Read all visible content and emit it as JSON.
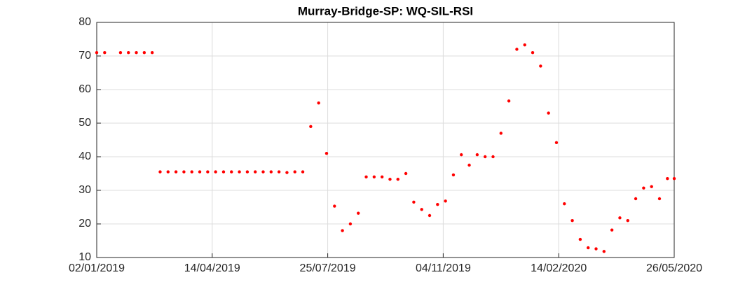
{
  "chart_data": {
    "type": "scatter",
    "title": "Murray-Bridge-SP: WQ-SIL-RSI",
    "x": [
      "02/01/2019",
      "09/01/2019",
      "23/01/2019",
      "30/01/2019",
      "06/02/2019",
      "13/02/2019",
      "20/02/2019",
      "27/02/2019",
      "06/03/2019",
      "13/03/2019",
      "20/03/2019",
      "27/03/2019",
      "03/04/2019",
      "10/04/2019",
      "17/04/2019",
      "24/04/2019",
      "01/05/2019",
      "08/05/2019",
      "15/05/2019",
      "22/05/2019",
      "29/05/2019",
      "05/06/2019",
      "12/06/2019",
      "19/06/2019",
      "26/06/2019",
      "03/07/2019",
      "10/07/2019",
      "17/07/2019",
      "24/07/2019",
      "31/07/2019",
      "07/08/2019",
      "14/08/2019",
      "21/08/2019",
      "28/08/2019",
      "04/09/2019",
      "11/09/2019",
      "18/09/2019",
      "25/09/2019",
      "02/10/2019",
      "09/10/2019",
      "16/10/2019",
      "23/10/2019",
      "30/10/2019",
      "06/11/2019",
      "13/11/2019",
      "20/11/2019",
      "27/11/2019",
      "04/12/2019",
      "11/12/2019",
      "18/12/2019",
      "25/12/2019",
      "01/01/2020",
      "08/01/2020",
      "15/01/2020",
      "22/01/2020",
      "29/01/2020",
      "05/02/2020",
      "12/02/2020",
      "19/02/2020",
      "26/02/2020",
      "04/03/2020",
      "11/03/2020",
      "18/03/2020",
      "25/03/2020",
      "01/04/2020",
      "08/04/2020",
      "15/04/2020",
      "22/04/2020",
      "29/04/2020",
      "06/05/2020",
      "13/05/2020",
      "20/05/2020",
      "26/05/2020"
    ],
    "values": [
      71,
      71,
      71,
      71,
      71,
      71,
      71,
      35.5,
      35.5,
      35.5,
      35.5,
      35.5,
      35.5,
      35.5,
      35.5,
      35.5,
      35.5,
      35.5,
      35.5,
      35.5,
      35.5,
      35.5,
      35.5,
      35.3,
      35.5,
      35.5,
      49,
      56,
      41,
      25.3,
      18,
      20,
      23.2,
      34,
      34,
      34,
      33.3,
      33.3,
      35,
      26.5,
      24.3,
      22.5,
      25.8,
      26.8,
      34.6,
      40.6,
      37.5,
      40.6,
      40,
      40,
      47,
      56.6,
      72,
      73.3,
      71,
      67,
      53,
      44.2,
      26,
      21,
      15.4,
      12.9,
      12.6,
      11.8,
      18.2,
      21.8,
      21,
      27.5,
      30.7,
      31.1,
      27.5,
      33.5,
      33.5
    ],
    "color": "#ff0000",
    "xlim": [
      "02/01/2019",
      "26/05/2020"
    ],
    "xticks": [
      "02/01/2019",
      "14/04/2019",
      "25/07/2019",
      "04/11/2019",
      "14/02/2020",
      "26/05/2020"
    ],
    "ylim": [
      10,
      80
    ],
    "yticks": [
      10,
      20,
      30,
      40,
      50,
      60,
      70,
      80
    ],
    "grid": true
  }
}
